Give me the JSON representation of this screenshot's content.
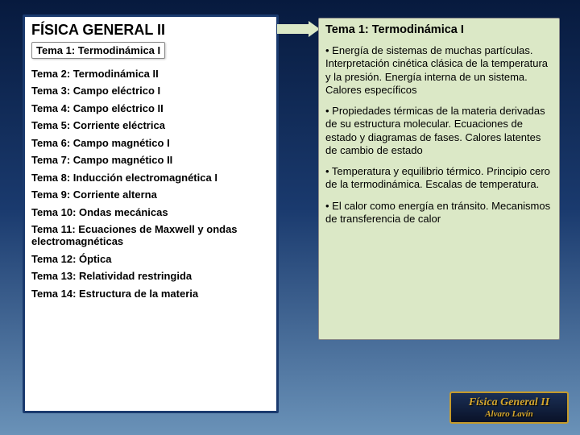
{
  "left": {
    "title": "FÍSICA GENERAL II",
    "highlighted": "Tema 1: Termodinámica I",
    "topics": [
      "Tema 2: Termodinámica II",
      "Tema 3: Campo eléctrico I",
      "Tema 4: Campo eléctrico II",
      "Tema 5: Corriente eléctrica",
      "Tema 6: Campo magnético I",
      "Tema 7: Campo magnético II",
      "Tema 8: Inducción electromagnética I",
      "Tema 9: Corriente alterna",
      "Tema 10: Ondas mecánicas",
      "Tema 11: Ecuaciones de Maxwell y ondas electromagnéticas",
      "Tema 12: Óptica",
      "Tema 13: Relatividad restringida",
      "Tema 14: Estructura de la materia"
    ]
  },
  "right": {
    "title": "Tema 1: Termodinámica I",
    "bullets": [
      "• Energía de sistemas de muchas partículas. Interpretación cinética clásica de la temperatura y la presión. Energía interna de un sistema. Calores específicos",
      "• Propiedades térmicas de la materia derivadas de su estructura molecular. Ecuaciones de estado y diagramas de fases. Calores latentes de cambio de estado",
      "• Temperatura y equilibrio térmico. Principio cero de la termodinámica. Escalas de temperatura.",
      "• El calor como energía en tránsito. Mecanismos de transferencia de calor"
    ]
  },
  "logo": {
    "line1": "Física General II",
    "line2": "Alvaro Lavín"
  },
  "colors": {
    "panel_bg": "#dbe8c6",
    "left_border": "#1a3a6e",
    "logo_border": "#c59a2a",
    "logo_text": "#d4a62e"
  }
}
